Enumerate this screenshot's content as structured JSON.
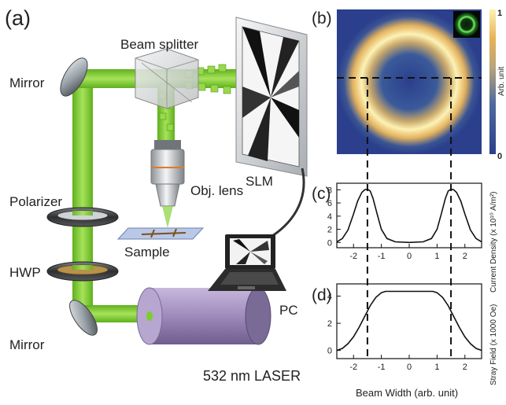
{
  "panel_labels": {
    "a": "(a)",
    "b": "(b)",
    "c": "(c)",
    "d": "(d)"
  },
  "setup": {
    "beam_splitter": "Beam splitter",
    "mirror_top": "Mirror",
    "polarizer": "Polarizer",
    "hwp": "HWP",
    "mirror_bottom": "Mirror",
    "laser": "532 nm LASER",
    "slm": "SLM",
    "objective": "Obj. lens",
    "sample": "Sample",
    "pc": "PC"
  },
  "colors": {
    "beam": "#7ccf2a",
    "beam_dark": "#4e9e16",
    "laser_body": "#a38fc0",
    "colormap_low": "#2b3f8c",
    "colormap_high": "#fdf2b5"
  },
  "colorbar": {
    "title": "Arb. unit",
    "max_label": "1",
    "min_label": "0"
  },
  "chart_data": [
    {
      "type": "line",
      "panel": "(c)",
      "xlabel": "",
      "ylabel": "Current Density (x 10¹⁰ A/m²)",
      "xlim": [
        -2.6,
        2.6
      ],
      "ylim": [
        -0.8,
        9
      ],
      "xticks": [
        "-2",
        "-1",
        "0",
        "1",
        "2"
      ],
      "yticks": [
        "0",
        "2",
        "4",
        "6",
        "8"
      ],
      "x": [
        -2.6,
        -2.4,
        -2.2,
        -2.0,
        -1.85,
        -1.7,
        -1.6,
        -1.5,
        -1.4,
        -1.3,
        -1.15,
        -1.0,
        -0.8,
        -0.5,
        0,
        0.5,
        0.8,
        1.0,
        1.15,
        1.3,
        1.4,
        1.5,
        1.6,
        1.7,
        1.85,
        2.0,
        2.2,
        2.4,
        2.6
      ],
      "y": [
        0.1,
        0.6,
        1.9,
        4.3,
        6.3,
        7.6,
        8.0,
        8.1,
        7.8,
        6.7,
        4.3,
        2.0,
        0.6,
        0.1,
        0.0,
        0.1,
        0.6,
        2.0,
        4.3,
        6.7,
        7.8,
        8.1,
        8.0,
        7.6,
        6.3,
        4.3,
        1.9,
        0.6,
        0.1
      ]
    },
    {
      "type": "line",
      "panel": "(d)",
      "xlabel": "Beam Width (arb. unit)",
      "ylabel": "Stray Field (x 1000 Oe)",
      "xlim": [
        -2.6,
        2.6
      ],
      "ylim": [
        -0.6,
        4.9
      ],
      "xticks": [
        "-2",
        "-1",
        "0",
        "1",
        "2"
      ],
      "yticks": [
        "0",
        "2",
        "4"
      ],
      "x": [
        -2.6,
        -2.4,
        -2.2,
        -2.0,
        -1.8,
        -1.6,
        -1.4,
        -1.2,
        -1.0,
        -0.85,
        0,
        0.85,
        1.0,
        1.2,
        1.4,
        1.6,
        1.8,
        2.0,
        2.2,
        2.4,
        2.6
      ],
      "y": [
        0.0,
        0.15,
        0.5,
        1.0,
        1.7,
        2.5,
        3.3,
        3.9,
        4.25,
        4.35,
        4.35,
        4.35,
        4.25,
        3.9,
        3.3,
        2.5,
        1.7,
        1.0,
        0.5,
        0.15,
        0.0
      ]
    }
  ]
}
